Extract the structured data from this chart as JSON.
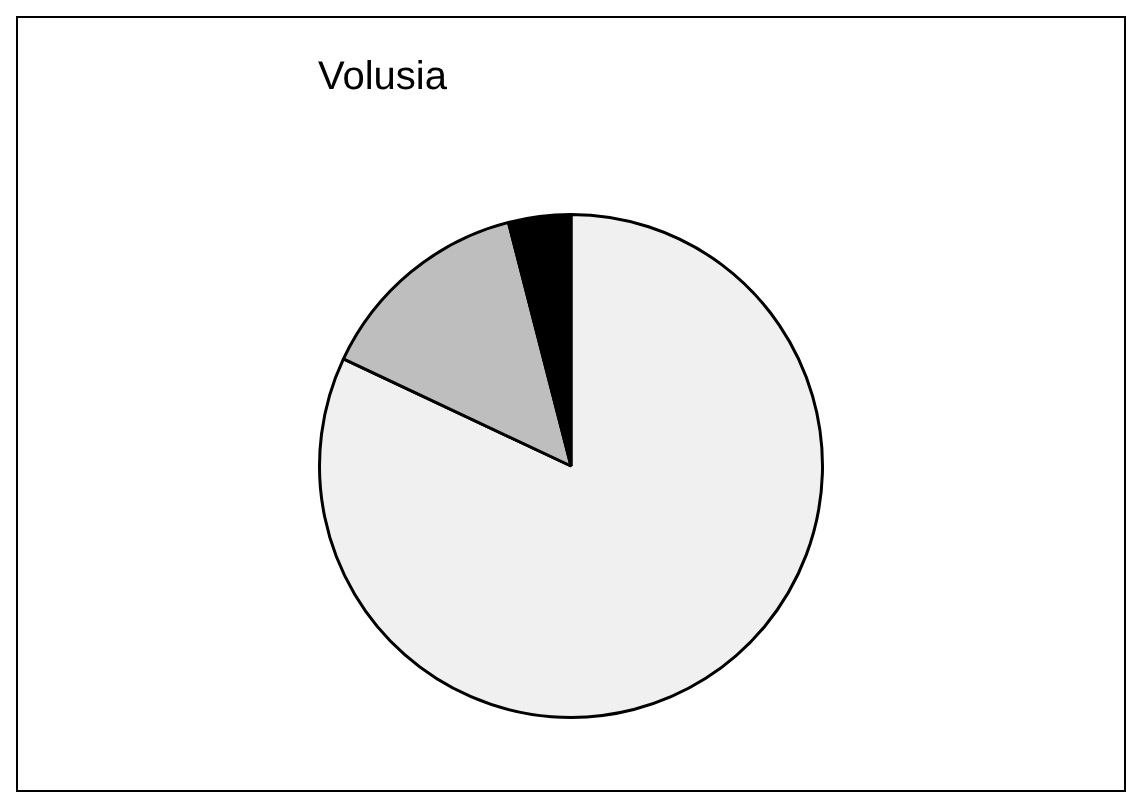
{
  "chart_data": {
    "type": "pie",
    "title": "Volusia",
    "categories": [
      null,
      null,
      null
    ],
    "values": [
      82,
      14,
      4
    ],
    "colors": [
      "#f0f0f0",
      "#bebebe",
      "#000000"
    ],
    "legend": false
  }
}
